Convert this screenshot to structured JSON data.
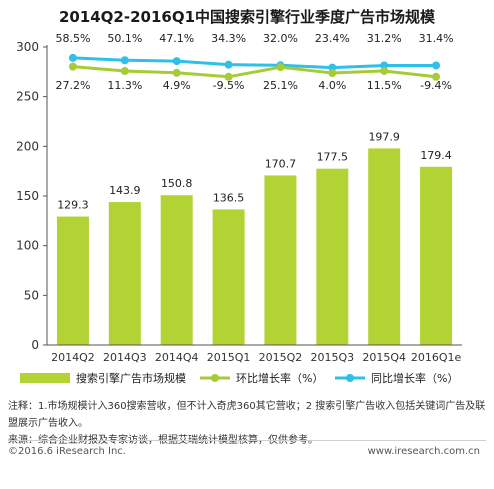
{
  "chart_data": {
    "type": "bar",
    "title": "2014Q2-2016Q1中国搜索引擎行业季度广告市场规模",
    "categories": [
      "2014Q2",
      "2014Q3",
      "2014Q4",
      "2015Q1",
      "2015Q2",
      "2015Q3",
      "2015Q4",
      "2016Q1e"
    ],
    "ylim": [
      0,
      300
    ],
    "yticks": [
      0,
      50,
      100,
      150,
      200,
      250,
      300
    ],
    "grid": false,
    "legend_position": "bottom",
    "series": [
      {
        "name": "搜索引擎广告市场规模",
        "type": "bar",
        "color": "#b3d335",
        "values": [
          129.3,
          143.9,
          150.8,
          136.5,
          170.7,
          177.5,
          197.9,
          179.4
        ]
      },
      {
        "name": "环比增长率（%）",
        "type": "line",
        "color": "#a5cc36",
        "values": [
          27.2,
          11.3,
          4.9,
          -9.5,
          25.1,
          4.0,
          11.5,
          -9.4
        ],
        "labels": [
          "27.2%",
          "11.3%",
          "4.9%",
          "-9.5%",
          "25.1%",
          "4.0%",
          "11.5%",
          "-9.4%"
        ]
      },
      {
        "name": "同比增长率（%）",
        "type": "line",
        "color": "#2ec0e8",
        "values": [
          58.5,
          50.1,
          47.1,
          34.3,
          32.0,
          23.4,
          31.2,
          31.4
        ],
        "labels": [
          "58.5%",
          "50.1%",
          "47.1%",
          "34.3%",
          "32.0%",
          "23.4%",
          "31.2%",
          "31.4%"
        ]
      }
    ]
  },
  "notes": {
    "line1": "注释：1.市场规模计入360搜索营收，但不计入奇虎360其它营收；2 搜索引擎广告收入包括关键词广告及联盟展示广告收入。",
    "line2": "来源：综合企业财报及专家访谈，根据艾瑞统计模型核算，仅供参考。"
  },
  "footer": {
    "copyright": "©2016.6  iResearch Inc.",
    "website": "www.iresearch.com.cn"
  }
}
